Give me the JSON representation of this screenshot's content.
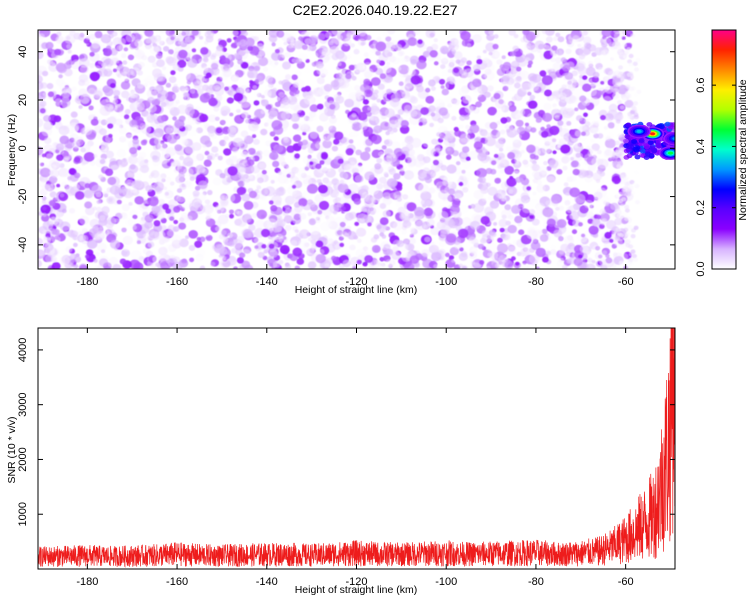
{
  "title": "C2E2.2026.040.19.22.E27",
  "chart_data": [
    {
      "type": "heatmap",
      "xlabel": "Height of straight line (km)",
      "ylabel": "Frequency (Hz)",
      "xlim": [
        -191,
        -49
      ],
      "ylim": [
        -50,
        49
      ],
      "xticks": [
        -180,
        -160,
        -140,
        -120,
        -100,
        -80,
        -60
      ],
      "yticks": [
        -40,
        -20,
        0,
        20,
        40
      ],
      "colorbar": {
        "label": "Normalized spectral amplitude",
        "range": [
          0,
          0.78
        ],
        "ticks": [
          0.0,
          0.2,
          0.4,
          0.6
        ],
        "tick_labels": [
          "0.0",
          "0.2",
          "0.4",
          "0.6"
        ],
        "colors": [
          "#ffffff",
          "#d8b4ff",
          "#8a00ff",
          "#5a00ff",
          "#0000ff",
          "#0099ff",
          "#00ffcc",
          "#00ff33",
          "#b3ff00",
          "#ffee00",
          "#ff8800",
          "#ff2200",
          "#ff0088"
        ]
      },
      "noise_region": {
        "x_range": [
          -191,
          -59
        ],
        "typical_amplitude": [
          0.0,
          0.12
        ]
      },
      "signal_peaks": [
        {
          "x": -54,
          "y": 6,
          "amplitude": 0.72
        },
        {
          "x": -57,
          "y": 7,
          "amplitude": 0.35
        },
        {
          "x": -50,
          "y": -2,
          "amplitude": 0.45
        },
        {
          "x": -49,
          "y": 4,
          "amplitude": 0.32
        }
      ]
    },
    {
      "type": "line",
      "xlabel": "Height of straight line (km)",
      "ylabel": "SNR (10 * v/v)",
      "xlim": [
        -191,
        -49
      ],
      "ylim": [
        0,
        4400
      ],
      "xticks": [
        -180,
        -160,
        -140,
        -120,
        -100,
        -80,
        -60
      ],
      "yticks": [
        1000,
        2000,
        3000,
        4000
      ],
      "series_color": "#ee1c1c",
      "series": [
        {
          "x": [
            -191,
            -185,
            -180,
            -175,
            -170,
            -165,
            -160,
            -155,
            -150,
            -145,
            -140,
            -135,
            -130,
            -125,
            -120,
            -115,
            -110,
            -105,
            -100,
            -95,
            -90,
            -85,
            -80,
            -75,
            -70,
            -66,
            -63,
            -60,
            -58,
            -56,
            -54,
            -53,
            -52,
            -51,
            -50,
            -49.5
          ],
          "values": [
            250,
            260,
            270,
            255,
            265,
            275,
            300,
            280,
            270,
            285,
            290,
            295,
            280,
            300,
            320,
            300,
            295,
            310,
            320,
            300,
            310,
            320,
            330,
            300,
            320,
            360,
            450,
            600,
            750,
            900,
            1100,
            1300,
            1700,
            2200,
            3000,
            4200
          ]
        }
      ]
    }
  ]
}
